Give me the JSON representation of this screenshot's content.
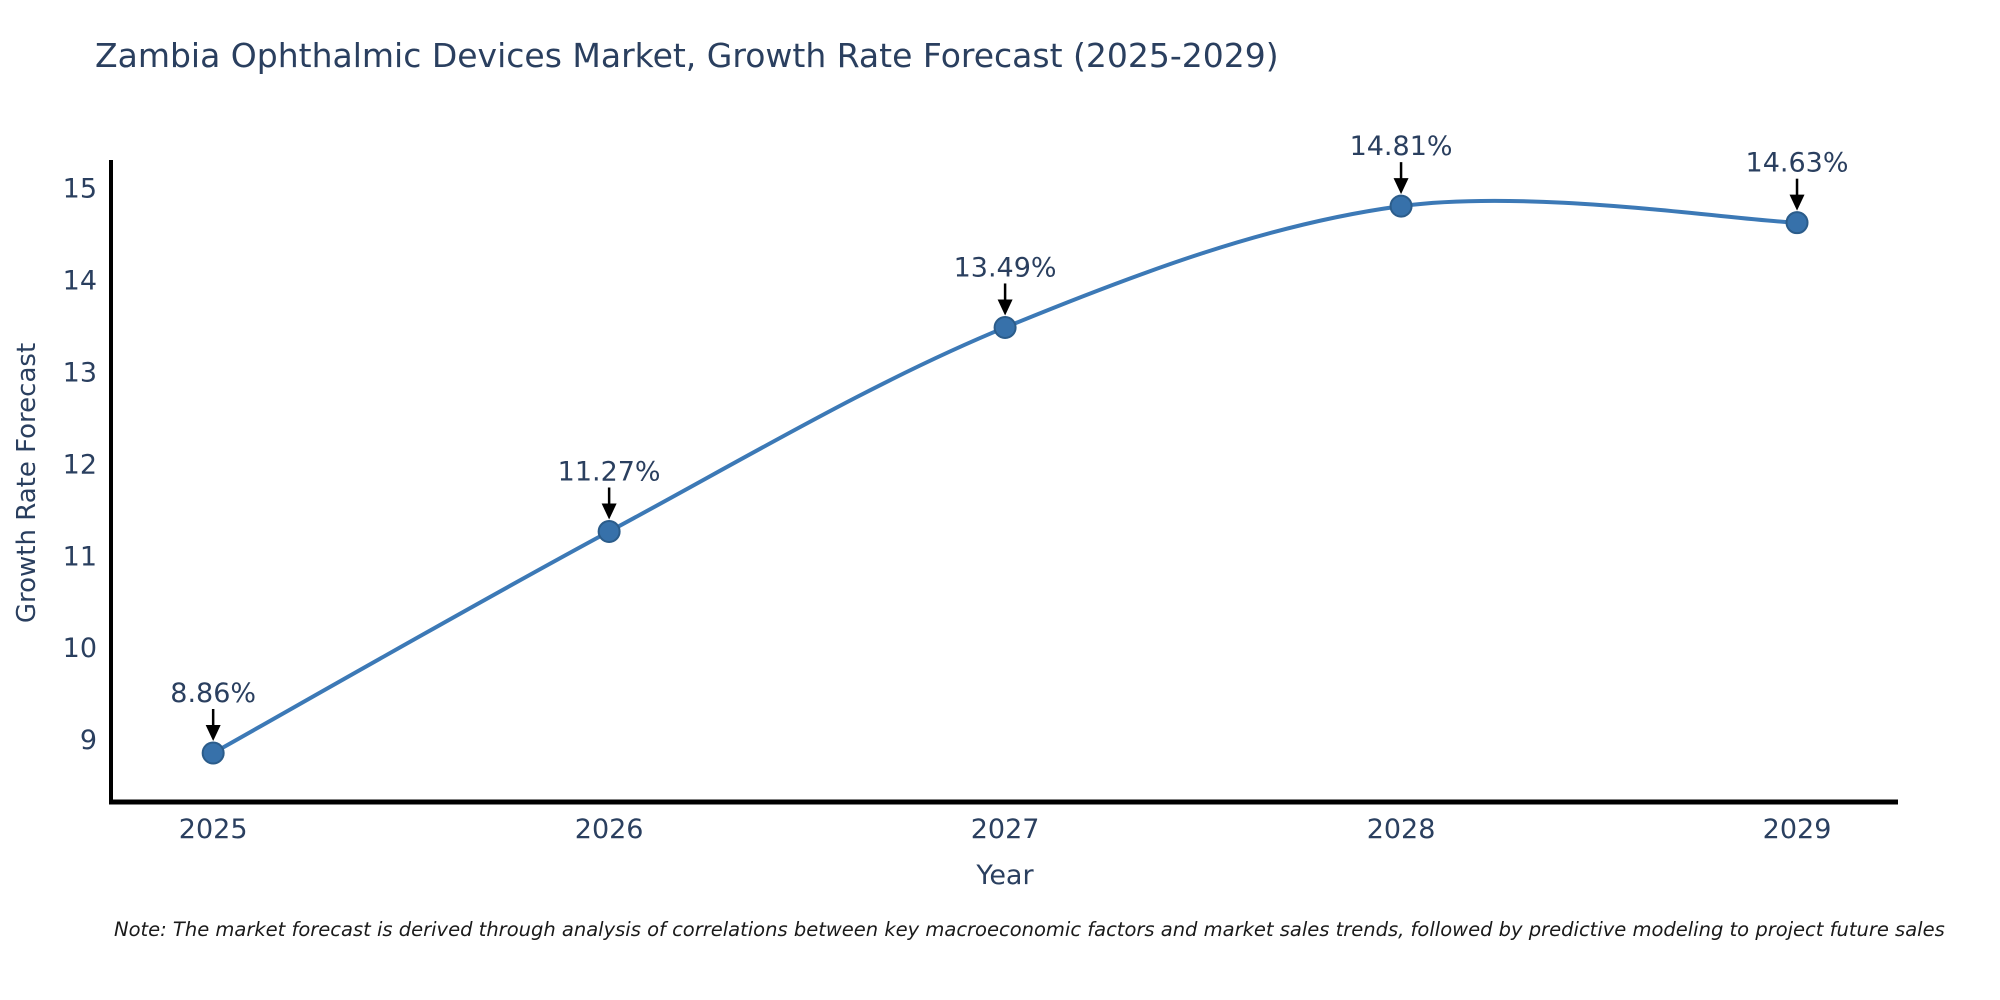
{
  "title": "Zambia Ophthalmic Devices Market, Growth Rate Forecast (2025-2029)",
  "footnote": "Note: The market forecast is derived through analysis of correlations between key macroeconomic factors and market sales trends, followed by predictive modeling to project future sales",
  "chart_data": {
    "type": "line",
    "title": "Zambia Ophthalmic Devices Market, Growth Rate Forecast (2025-2029)",
    "xlabel": "Year",
    "ylabel": "Growth Rate Forecast",
    "x": [
      2025,
      2026,
      2027,
      2028,
      2029
    ],
    "values": [
      8.86,
      11.27,
      13.49,
      14.81,
      14.63
    ],
    "point_labels": [
      "8.86%",
      "11.27%",
      "13.49%",
      "14.81%",
      "14.63%"
    ],
    "xtick_labels": [
      "2025",
      "2026",
      "2027",
      "2028",
      "2029"
    ],
    "yticks": [
      9,
      10,
      11,
      12,
      13,
      14,
      15
    ],
    "xlim": [
      2024.742,
      2029.255
    ],
    "ylim": [
      8.327,
      15.312
    ],
    "line_shape": "spline",
    "grid": false,
    "legend": false,
    "colors": {
      "line": "#3c79b6",
      "marker_fill": "#3771aa",
      "marker_edge": "#2b5c8a",
      "axis_line": "#000000",
      "tick_text": "#2a3f5f",
      "annotation_text": "#2a3f5f",
      "annotation_arrow": "#000000",
      "background": "#ffffff"
    }
  }
}
